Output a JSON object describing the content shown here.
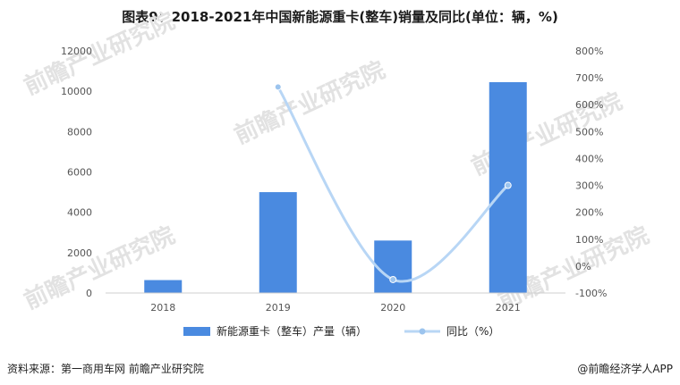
{
  "title": "图表9：2018-2021年中国新能源重卡(整车)销量及同比(单位：辆，%)",
  "watermark": "前瞻产业研究院",
  "source": "资料来源：第一商用车网 前瞻产业研究院",
  "brand": "@前瞻经济学人APP",
  "colors": {
    "bar": "#4a8ae0",
    "line": "#b8d6f5",
    "marker": "#9cc4ee",
    "axis": "#cfcfcf",
    "tick_text": "#555555"
  },
  "chart_data": {
    "type": "bar",
    "categories": [
      "2018",
      "2019",
      "2020",
      "2021"
    ],
    "series": [
      {
        "name": "新能源重卡（整车）产量（辆）",
        "type": "bar",
        "axis": "left",
        "values": [
          640,
          5000,
          2600,
          10450
        ]
      },
      {
        "name": "同比（%）",
        "type": "line",
        "axis": "right",
        "values": [
          null,
          666,
          -50,
          300
        ]
      }
    ],
    "y_left": {
      "min": 0,
      "max": 12000,
      "ticks": [
        "0",
        "2000",
        "4000",
        "6000",
        "8000",
        "10000",
        "12000"
      ]
    },
    "y_right": {
      "min": -100,
      "max": 800,
      "ticks": [
        "-100%",
        "0%",
        "100%",
        "200%",
        "300%",
        "400%",
        "500%",
        "600%",
        "700%",
        "800%"
      ]
    },
    "legend_position": "bottom",
    "grid": false
  }
}
